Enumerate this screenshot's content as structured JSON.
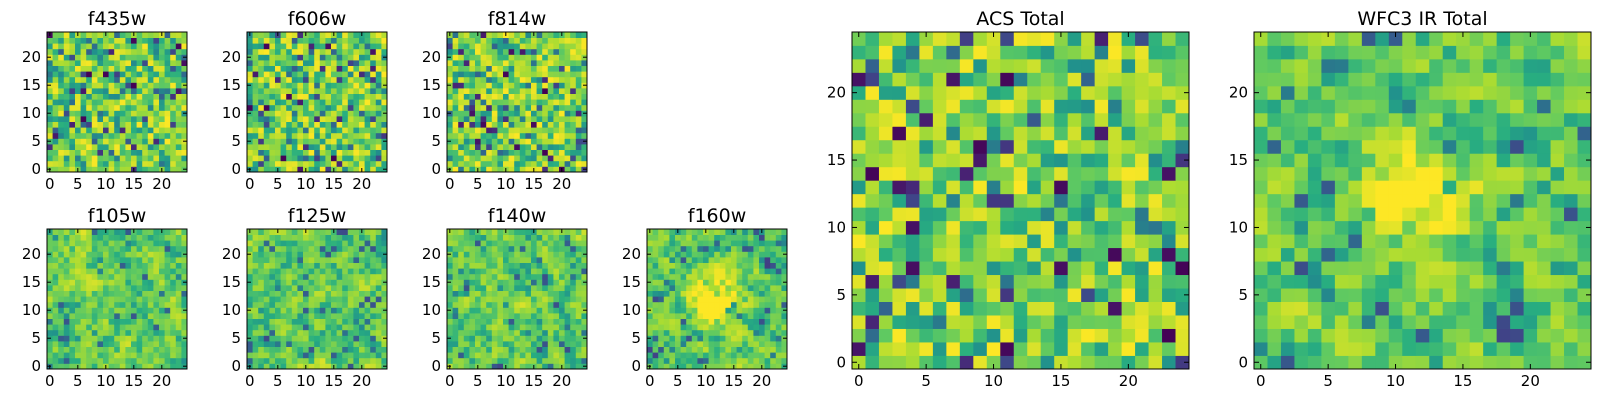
{
  "figure": {
    "colormap": "viridis",
    "background": "#ffffff"
  },
  "chart_data": [
    {
      "type": "heatmap",
      "title": "f435w",
      "grid_size": 25,
      "xlim": [
        0,
        24
      ],
      "ylim": [
        0,
        24
      ],
      "xticks": [
        "0",
        "5",
        "10",
        "15",
        "20"
      ],
      "yticks": [
        "0",
        "5",
        "10",
        "15",
        "20"
      ],
      "value_range": [
        0,
        1
      ],
      "pattern": "noise",
      "seed": 11,
      "description_values": "pixel intensities, noisy, no dominant source"
    },
    {
      "type": "heatmap",
      "title": "f606w",
      "grid_size": 25,
      "xlim": [
        0,
        24
      ],
      "ylim": [
        0,
        24
      ],
      "xticks": [
        "0",
        "5",
        "10",
        "15",
        "20"
      ],
      "yticks": [
        "0",
        "5",
        "10",
        "15",
        "20"
      ],
      "value_range": [
        0,
        1
      ],
      "pattern": "noise",
      "seed": 23
    },
    {
      "type": "heatmap",
      "title": "f814w",
      "grid_size": 25,
      "xlim": [
        0,
        24
      ],
      "ylim": [
        0,
        24
      ],
      "xticks": [
        "0",
        "5",
        "10",
        "15",
        "20"
      ],
      "yticks": [
        "0",
        "5",
        "10",
        "15",
        "20"
      ],
      "value_range": [
        0,
        1
      ],
      "pattern": "noise",
      "seed": 37
    },
    {
      "type": "heatmap",
      "title": "f105w",
      "grid_size": 25,
      "xlim": [
        0,
        24
      ],
      "ylim": [
        0,
        24
      ],
      "xticks": [
        "0",
        "5",
        "10",
        "15",
        "20"
      ],
      "yticks": [
        "0",
        "5",
        "10",
        "15",
        "20"
      ],
      "value_range": [
        0,
        1
      ],
      "pattern": "smooth",
      "seed": 41
    },
    {
      "type": "heatmap",
      "title": "f125w",
      "grid_size": 25,
      "xlim": [
        0,
        24
      ],
      "ylim": [
        0,
        24
      ],
      "xticks": [
        "0",
        "5",
        "10",
        "15",
        "20"
      ],
      "yticks": [
        "0",
        "5",
        "10",
        "15",
        "20"
      ],
      "value_range": [
        0,
        1
      ],
      "pattern": "smooth",
      "seed": 53
    },
    {
      "type": "heatmap",
      "title": "f140w",
      "grid_size": 25,
      "xlim": [
        0,
        24
      ],
      "ylim": [
        0,
        24
      ],
      "xticks": [
        "0",
        "5",
        "10",
        "15",
        "20"
      ],
      "yticks": [
        "0",
        "5",
        "10",
        "15",
        "20"
      ],
      "value_range": [
        0,
        1
      ],
      "pattern": "smooth",
      "seed": 67
    },
    {
      "type": "heatmap",
      "title": "f160w",
      "grid_size": 25,
      "xlim": [
        0,
        24
      ],
      "ylim": [
        0,
        24
      ],
      "xticks": [
        "0",
        "5",
        "10",
        "15",
        "20"
      ],
      "yticks": [
        "0",
        "5",
        "10",
        "15",
        "20"
      ],
      "value_range": [
        0,
        1
      ],
      "pattern": "source",
      "source_center": [
        12,
        12
      ],
      "seed": 71
    },
    {
      "type": "heatmap",
      "title": "ACS Total",
      "grid_size": 25,
      "xlim": [
        0,
        24
      ],
      "ylim": [
        0,
        24
      ],
      "xticks": [
        "0",
        "5",
        "10",
        "15",
        "20"
      ],
      "yticks": [
        "0",
        "5",
        "10",
        "15",
        "20"
      ],
      "value_range": [
        0,
        1
      ],
      "pattern": "noise",
      "seed": 83
    },
    {
      "type": "heatmap",
      "title": "WFC3 IR Total",
      "grid_size": 25,
      "xlim": [
        0,
        24
      ],
      "ylim": [
        0,
        24
      ],
      "xticks": [
        "0",
        "5",
        "10",
        "15",
        "20"
      ],
      "yticks": [
        "0",
        "5",
        "10",
        "15",
        "20"
      ],
      "value_range": [
        0,
        1
      ],
      "pattern": "source",
      "source_center": [
        12,
        13
      ],
      "seed": 97
    }
  ]
}
